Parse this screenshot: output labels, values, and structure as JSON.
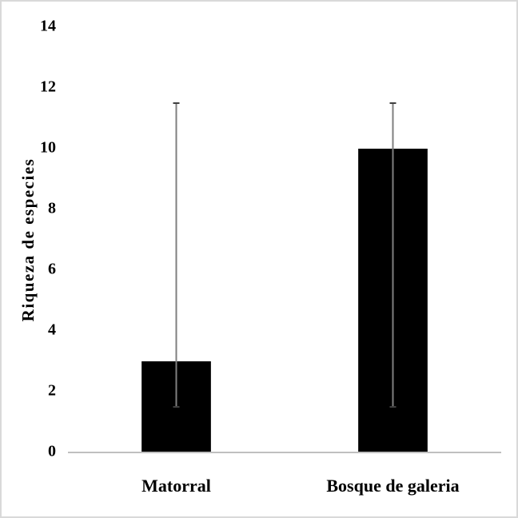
{
  "chart_data": {
    "type": "bar",
    "y_label": "Riqueza de especies",
    "categories": [
      "Matorral",
      "Bosque de galeria"
    ],
    "values": [
      3,
      10
    ],
    "errors_minus": [
      1.5,
      8.5
    ],
    "errors_plus": [
      8.5,
      1.5
    ],
    "color": "#000000",
    "ylim": [
      0,
      14
    ],
    "yticks": [
      0,
      2,
      4,
      6,
      8,
      10,
      12,
      14
    ],
    "grid": false
  }
}
